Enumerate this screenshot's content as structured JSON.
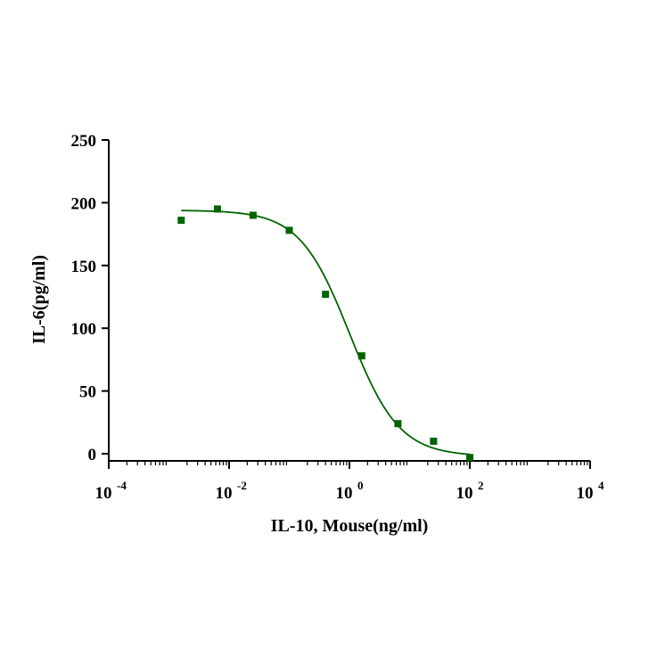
{
  "chart_data": {
    "type": "scatter",
    "xlabel": "IL-10, Mouse(ng/ml)",
    "ylabel": "IL-6(pg/ml)",
    "xscale": "log",
    "xlim": [
      0.0001,
      10000
    ],
    "ylim": [
      0,
      250
    ],
    "yticks": [
      "0",
      "50",
      "100",
      "150",
      "200",
      "250"
    ],
    "xticks": [
      {
        "base": "10",
        "exp": "-4",
        "value": 0.0001
      },
      {
        "base": "10",
        "exp": "-2",
        "value": 0.01
      },
      {
        "base": "10",
        "exp": "0",
        "value": 1
      },
      {
        "base": "10",
        "exp": "2",
        "value": 100
      },
      {
        "base": "10",
        "exp": "4",
        "value": 10000
      }
    ],
    "color": "#006400",
    "points": [
      {
        "x": 0.0016,
        "y": 186
      },
      {
        "x": 0.0064,
        "y": 195
      },
      {
        "x": 0.025,
        "y": 190
      },
      {
        "x": 0.1,
        "y": 178
      },
      {
        "x": 0.4,
        "y": 127
      },
      {
        "x": 1.6,
        "y": 78
      },
      {
        "x": 6.4,
        "y": 24
      },
      {
        "x": 25,
        "y": 10
      },
      {
        "x": 100,
        "y": -3
      }
    ],
    "fit": {
      "model": "4PL",
      "top": 194,
      "bottom": -2,
      "ec50": 1.0,
      "hill": 1.05,
      "x_range": [
        0.0016,
        100
      ]
    }
  }
}
